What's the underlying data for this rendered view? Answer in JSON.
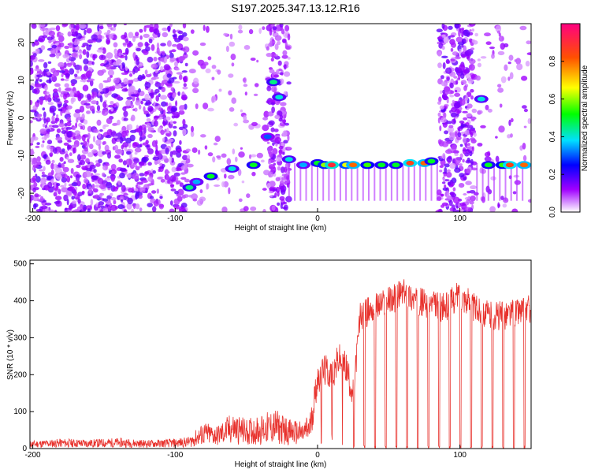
{
  "title": "S197.2025.347.13.12.R16",
  "colors": {
    "signal": "#e8332e",
    "axis": "#000000"
  },
  "chart_data": [
    {
      "type": "heatmap",
      "title": "S197.2025.347.13.12.R16",
      "xlabel": "Height of straight line (km)",
      "ylabel": "Frequency (Hz)",
      "xlim": [
        -202,
        150
      ],
      "ylim": [
        -25,
        25
      ],
      "xticks": [
        "-200",
        "-100",
        "0",
        "100"
      ],
      "yticks": [
        "-20",
        "-10",
        "0",
        "10",
        "20"
      ],
      "colorbar": {
        "label": "Normalized spectral amplitude",
        "range": [
          0,
          1
        ],
        "ticks": [
          "0.0",
          "0.2",
          "0.4",
          "0.6",
          "0.8"
        ]
      },
      "ridge": [
        {
          "x": -90,
          "y": -18.5,
          "amp": 0.45
        },
        {
          "x": -85,
          "y": -17,
          "amp": 0.35
        },
        {
          "x": -75,
          "y": -15.5,
          "amp": 0.5
        },
        {
          "x": -60,
          "y": -13.5,
          "amp": 0.4
        },
        {
          "x": -45,
          "y": -12.5,
          "amp": 0.5
        },
        {
          "x": -35,
          "y": -5,
          "amp": 0.3
        },
        {
          "x": -31,
          "y": 9.5,
          "amp": 0.45
        },
        {
          "x": -27,
          "y": 5.5,
          "amp": 0.4
        },
        {
          "x": -20,
          "y": -11,
          "amp": 0.4
        },
        {
          "x": -10,
          "y": -12.5,
          "amp": 0.35
        },
        {
          "x": 0,
          "y": -12,
          "amp": 0.5
        },
        {
          "x": 5,
          "y": -12.5,
          "amp": 0.6
        },
        {
          "x": 10,
          "y": -12.5,
          "amp": 0.9
        },
        {
          "x": 20,
          "y": -12.5,
          "amp": 0.65
        },
        {
          "x": 25,
          "y": -12.5,
          "amp": 0.8
        },
        {
          "x": 35,
          "y": -12.5,
          "amp": 0.55
        },
        {
          "x": 45,
          "y": -12.5,
          "amp": 0.5
        },
        {
          "x": 55,
          "y": -12.5,
          "amp": 0.5
        },
        {
          "x": 65,
          "y": -12,
          "amp": 0.85
        },
        {
          "x": 75,
          "y": -12,
          "amp": 0.8
        },
        {
          "x": 80,
          "y": -11.5,
          "amp": 0.5
        },
        {
          "x": 115,
          "y": 5,
          "amp": 0.4
        },
        {
          "x": 120,
          "y": -12.5,
          "amp": 0.5
        },
        {
          "x": 130,
          "y": -12.5,
          "amp": 0.55
        },
        {
          "x": 135,
          "y": -12.5,
          "amp": 0.85
        },
        {
          "x": 145,
          "y": -12.5,
          "amp": 0.8
        }
      ]
    },
    {
      "type": "line",
      "xlabel": "Height of straight line (km)",
      "ylabel": "SNR (10 * v/v)",
      "xlim": [
        -202,
        150
      ],
      "ylim": [
        0,
        510
      ],
      "xticks": [
        "-200",
        "-100",
        "0",
        "100"
      ],
      "yticks": [
        "0",
        "100",
        "200",
        "300",
        "400",
        "500"
      ],
      "x": [
        -200,
        -180,
        -160,
        -140,
        -120,
        -100,
        -90,
        -80,
        -70,
        -60,
        -50,
        -40,
        -30,
        -20,
        -10,
        -5,
        0,
        5,
        10,
        15,
        20,
        25,
        30,
        40,
        50,
        60,
        70,
        80,
        90,
        100,
        110,
        120,
        130,
        140,
        150
      ],
      "y": [
        12,
        15,
        14,
        16,
        13,
        15,
        18,
        40,
        35,
        55,
        45,
        50,
        60,
        45,
        40,
        60,
        190,
        210,
        200,
        240,
        220,
        150,
        360,
        380,
        400,
        420,
        400,
        390,
        380,
        420,
        380,
        360,
        360,
        370,
        380
      ],
      "dropouts_to_zero": true
    }
  ]
}
